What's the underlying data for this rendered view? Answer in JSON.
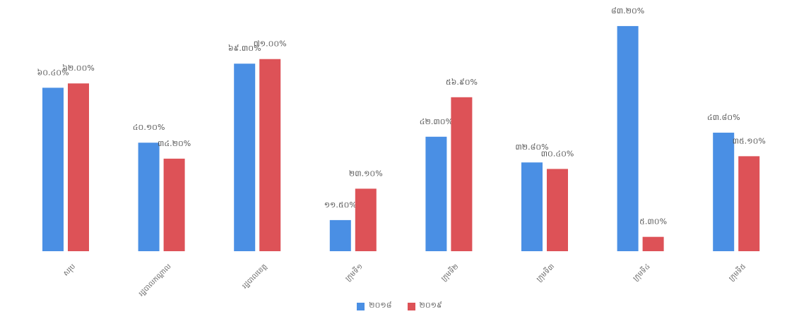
{
  "title": "",
  "colors": {
    "series_a": "#4a8fe4",
    "series_b": "#dd5257"
  },
  "chart_data": {
    "type": "bar",
    "title": "",
    "xlabel": "",
    "ylabel": "",
    "ylim": [
      0,
      100
    ],
    "grid": false,
    "legend_position": "bottom",
    "categories": [
      "សរុប",
      "រដ្ឋបាលកណ្តាល",
      "រដ្ឋបាលខេត្ត",
      "ក្រុមទី១",
      "ក្រុមទី២",
      "ក្រុមទី៣",
      "ក្រុមទី៤",
      "ក្រុមទី៥"
    ],
    "series": [
      {
        "name": "២០១៨",
        "color": "#4a8fe4",
        "values": [
          60.4,
          40.1,
          69.3,
          11.5,
          42.3,
          32.8,
          83.2,
          43.8
        ],
        "labels": [
          "៦០.៤០%",
          "៤០.១០%",
          "៦៩.៣០%",
          "១១.៥០%",
          "៤២.៣០%",
          "៣២.៨០%",
          "៨៣.២០%",
          "៤៣.៨០%"
        ]
      },
      {
        "name": "២០១៩",
        "color": "#dd5257",
        "values": [
          62.0,
          34.2,
          71.0,
          23.1,
          56.9,
          30.4,
          5.3,
          35.1
        ],
        "labels": [
          "៦២.០០%",
          "៣៤.២០%",
          "៧១.០០%",
          "២៣.១០%",
          "៥៦.៩០%",
          "៣០.៤០%",
          "៥.៣០%",
          "៣៥.១០%"
        ]
      }
    ]
  }
}
